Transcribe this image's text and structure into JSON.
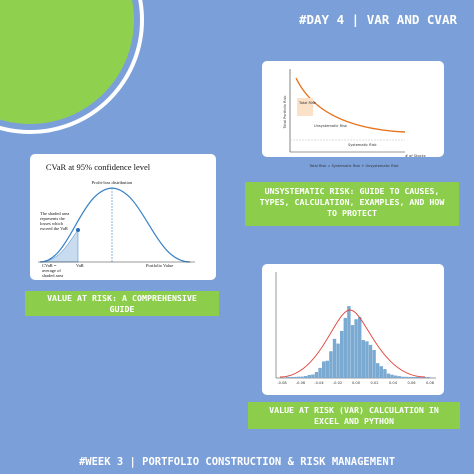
{
  "header": {
    "title": "#DAY 4 | VAR AND CVAR"
  },
  "cards": [
    {
      "caption": [
        "UNSYSTEMATIC RISK: GUIDE TO CAUSES,",
        "TYPES, CALCULATION, EXAMPLES, AND HOW",
        "TO PROTECT"
      ],
      "thumb": {
        "y_label": "Total Portfolio Risk",
        "labels": [
          "Total Risk",
          "Unsystematic Risk",
          "Systematic Risk"
        ],
        "x_label": "# of Stocks",
        "formula": "Total Risk = Systematic Risk + Unsystematic Risk"
      }
    },
    {
      "caption": [
        "VALUE AT RISK: A COMPREHENSIVE",
        "GUIDE"
      ],
      "thumb": {
        "title": "CVaR at 95% confidence level",
        "curve_label": "Profit-loss distribution",
        "note": [
          "The shaded area",
          "represents the",
          "losses which",
          "exceed the VaR"
        ],
        "cvar": [
          "CVaR =",
          "average of",
          "shaded area"
        ],
        "var": "VaR",
        "x_label": "Portfolio Value"
      }
    },
    {
      "caption": [
        "VALUE AT RISK (VAR) CALCULATION IN",
        "EXCEL AND PYTHON"
      ],
      "thumb": {
        "xticks": [
          "-0.08",
          "-0.06",
          "-0.04",
          "-0.02",
          "0.00",
          "0.02",
          "0.04",
          "0.06",
          "0.08"
        ]
      }
    }
  ],
  "footer": {
    "text": "#WEEK 3 | PORTFOLIO CONSTRUCTION & RISK MANAGEMENT"
  }
}
